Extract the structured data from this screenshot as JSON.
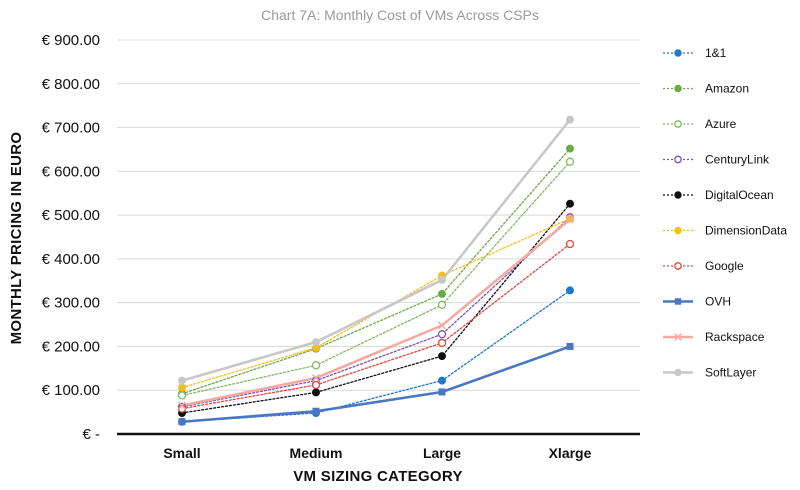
{
  "chart_data": {
    "type": "line",
    "title": "Chart 7A: Monthly Cost of VMs Across CSPs",
    "xlabel": "VM SIZING CATEGORY",
    "ylabel": "MONTHLY PRICING IN EURO",
    "categories": [
      "Small",
      "Medium",
      "Large",
      "Xlarge"
    ],
    "ylim": [
      0,
      900
    ],
    "yticks": [
      0,
      100,
      200,
      300,
      400,
      500,
      600,
      700,
      800,
      900
    ],
    "ytick_labels": [
      "€ -",
      "€ 100.00",
      "€ 200.00",
      "€ 300.00",
      "€ 400.00",
      "€ 500.00",
      "€ 600.00",
      "€ 700.00",
      "€ 800.00",
      "€ 900.00"
    ],
    "grid": "horizontal",
    "legend_position": "right",
    "series": [
      {
        "name": "1&1",
        "values": [
          28,
          48,
          122,
          328
        ],
        "color": "#1f78c8",
        "line": "dotted",
        "marker": "circle-filled"
      },
      {
        "name": "Amazon",
        "values": [
          92,
          195,
          320,
          652
        ],
        "color": "#6aaa45",
        "line": "dotted",
        "marker": "circle-filled"
      },
      {
        "name": "Azure",
        "values": [
          88,
          157,
          295,
          622
        ],
        "color": "#7dbb5e",
        "line": "dotted",
        "marker": "circle-open"
      },
      {
        "name": "CenturyLink",
        "values": [
          62,
          122,
          228,
          495
        ],
        "color": "#7b52b8",
        "line": "dotted",
        "marker": "circle-open"
      },
      {
        "name": "DigitalOcean",
        "values": [
          48,
          95,
          178,
          526
        ],
        "color": "#111111",
        "line": "dotted",
        "marker": "circle-filled"
      },
      {
        "name": "DimensionData",
        "values": [
          106,
          197,
          362,
          492
        ],
        "color": "#f5be1e",
        "line": "dotted",
        "marker": "circle-filled"
      },
      {
        "name": "Google",
        "values": [
          58,
          112,
          208,
          434
        ],
        "color": "#e8453c",
        "line": "dotted",
        "marker": "circle-open"
      },
      {
        "name": "OVH",
        "values": [
          28,
          52,
          96,
          200
        ],
        "color": "#4a76c4",
        "line": "solid",
        "marker": "square-filled"
      },
      {
        "name": "Rackspace",
        "values": [
          65,
          128,
          248,
          490
        ],
        "color": "#f4aaa0",
        "line": "solid",
        "marker": "x"
      },
      {
        "name": "SoftLayer",
        "values": [
          122,
          210,
          352,
          718
        ],
        "color": "#c8c8c8",
        "line": "solid",
        "marker": "circle-filled"
      }
    ]
  }
}
